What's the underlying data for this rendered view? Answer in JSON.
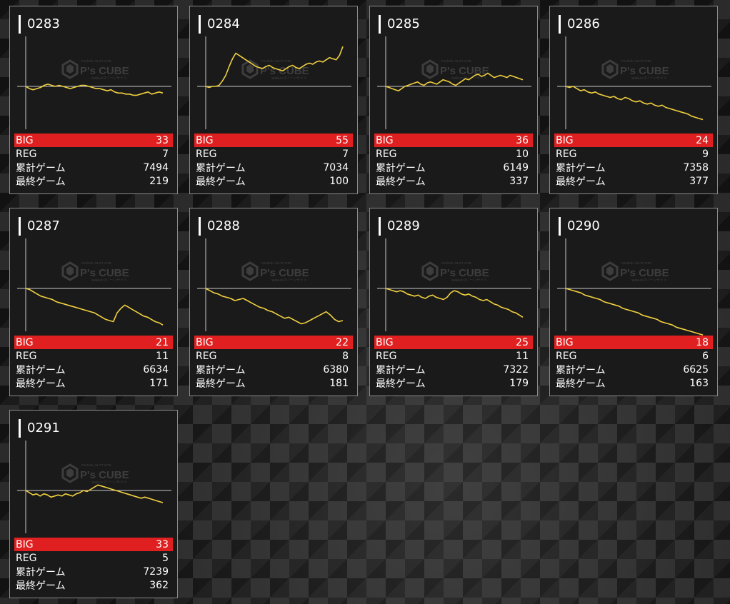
{
  "labels": {
    "big": "BIG",
    "reg": "REG",
    "total_games": "累計ゲーム",
    "last_games": "最終ゲーム"
  },
  "watermark": {
    "brand": "P's CUBE",
    "tagline": "PachiSlo SLOT SITE",
    "sub": "waku×2ゾーンサイト"
  },
  "colors": {
    "big_bar": "#e02020",
    "graph_line": "#f0d040",
    "axis": "#c8c8c8"
  },
  "machines": [
    {
      "number": "0283",
      "big": "33",
      "reg": "7",
      "total_games": "7494",
      "last_games": "219",
      "trend": [
        0,
        -2,
        -3,
        -2,
        -1,
        1,
        2,
        1,
        0,
        1,
        0,
        -1,
        -2,
        -1,
        0,
        1,
        1,
        0,
        -1,
        -2,
        -2,
        -3,
        -4,
        -3,
        -5,
        -6,
        -6,
        -7,
        -7,
        -8,
        -8,
        -7,
        -6,
        -5,
        -7,
        -6,
        -5,
        -6
      ]
    },
    {
      "number": "0284",
      "big": "55",
      "reg": "7",
      "total_games": "7034",
      "last_games": "100",
      "trend": [
        0,
        -1,
        0,
        0,
        1,
        5,
        10,
        18,
        25,
        30,
        28,
        26,
        24,
        22,
        20,
        18,
        17,
        16,
        18,
        19,
        17,
        16,
        15,
        14,
        16,
        18,
        19,
        17,
        16,
        18,
        20,
        21,
        20,
        22,
        23,
        22,
        24,
        26,
        25,
        24,
        28,
        36
      ]
    },
    {
      "number": "0285",
      "big": "36",
      "reg": "10",
      "total_games": "6149",
      "last_games": "337",
      "trend": [
        0,
        -1,
        -2,
        -3,
        -4,
        -2,
        0,
        1,
        2,
        3,
        4,
        2,
        1,
        3,
        4,
        3,
        2,
        4,
        6,
        5,
        4,
        2,
        1,
        3,
        5,
        7,
        6,
        8,
        10,
        11,
        9,
        10,
        12,
        10,
        8,
        9,
        10,
        9,
        8,
        10,
        9,
        8,
        7,
        6
      ]
    },
    {
      "number": "0286",
      "big": "24",
      "reg": "9",
      "total_games": "7358",
      "last_games": "377",
      "trend": [
        0,
        -1,
        0,
        -2,
        -4,
        -3,
        -5,
        -6,
        -5,
        -7,
        -8,
        -9,
        -10,
        -9,
        -11,
        -12,
        -10,
        -11,
        -13,
        -14,
        -13,
        -15,
        -16,
        -15,
        -17,
        -18,
        -17,
        -19,
        -20,
        -21,
        -22,
        -23,
        -24,
        -25,
        -27,
        -28,
        -29,
        -30
      ]
    },
    {
      "number": "0287",
      "big": "21",
      "reg": "11",
      "total_games": "6634",
      "last_games": "171",
      "trend": [
        0,
        -1,
        -3,
        -5,
        -7,
        -8,
        -9,
        -10,
        -12,
        -13,
        -14,
        -15,
        -16,
        -17,
        -18,
        -19,
        -20,
        -21,
        -22,
        -24,
        -26,
        -28,
        -29,
        -30,
        -22,
        -18,
        -15,
        -17,
        -19,
        -21,
        -23,
        -25,
        -26,
        -28,
        -30,
        -31,
        -33
      ]
    },
    {
      "number": "0288",
      "big": "22",
      "reg": "8",
      "total_games": "6380",
      "last_games": "181",
      "trend": [
        0,
        -2,
        -4,
        -5,
        -7,
        -8,
        -9,
        -11,
        -10,
        -9,
        -11,
        -13,
        -15,
        -17,
        -18,
        -20,
        -21,
        -23,
        -25,
        -27,
        -26,
        -28,
        -30,
        -32,
        -31,
        -29,
        -27,
        -25,
        -23,
        -21,
        -24,
        -28,
        -30,
        -29
      ]
    },
    {
      "number": "0289",
      "big": "25",
      "reg": "11",
      "total_games": "7322",
      "last_games": "179",
      "trend": [
        0,
        -1,
        -2,
        -3,
        -2,
        -3,
        -5,
        -6,
        -7,
        -6,
        -8,
        -9,
        -7,
        -6,
        -8,
        -9,
        -10,
        -8,
        -4,
        -2,
        -3,
        -5,
        -6,
        -5,
        -7,
        -8,
        -10,
        -11,
        -10,
        -12,
        -14,
        -15,
        -17,
        -18,
        -19,
        -21,
        -22,
        -24,
        -26
      ]
    },
    {
      "number": "0290",
      "big": "18",
      "reg": "6",
      "total_games": "6625",
      "last_games": "163",
      "trend": [
        0,
        -1,
        -2,
        -3,
        -4,
        -6,
        -7,
        -8,
        -9,
        -10,
        -12,
        -13,
        -14,
        -15,
        -16,
        -18,
        -19,
        -20,
        -21,
        -22,
        -24,
        -25,
        -26,
        -27,
        -28,
        -30,
        -31,
        -32,
        -33,
        -35,
        -36,
        -37,
        -38,
        -39,
        -40,
        -41,
        -42
      ]
    },
    {
      "number": "0291",
      "big": "33",
      "reg": "5",
      "total_games": "7239",
      "last_games": "362",
      "trend": [
        0,
        -2,
        -4,
        -3,
        -5,
        -3,
        -4,
        -6,
        -5,
        -4,
        -5,
        -3,
        -4,
        -5,
        -3,
        -2,
        0,
        -1,
        1,
        3,
        5,
        4,
        3,
        2,
        1,
        0,
        -1,
        -2,
        -3,
        -4,
        -5,
        -6,
        -7,
        -6,
        -7,
        -8,
        -9,
        -10,
        -11
      ]
    }
  ]
}
